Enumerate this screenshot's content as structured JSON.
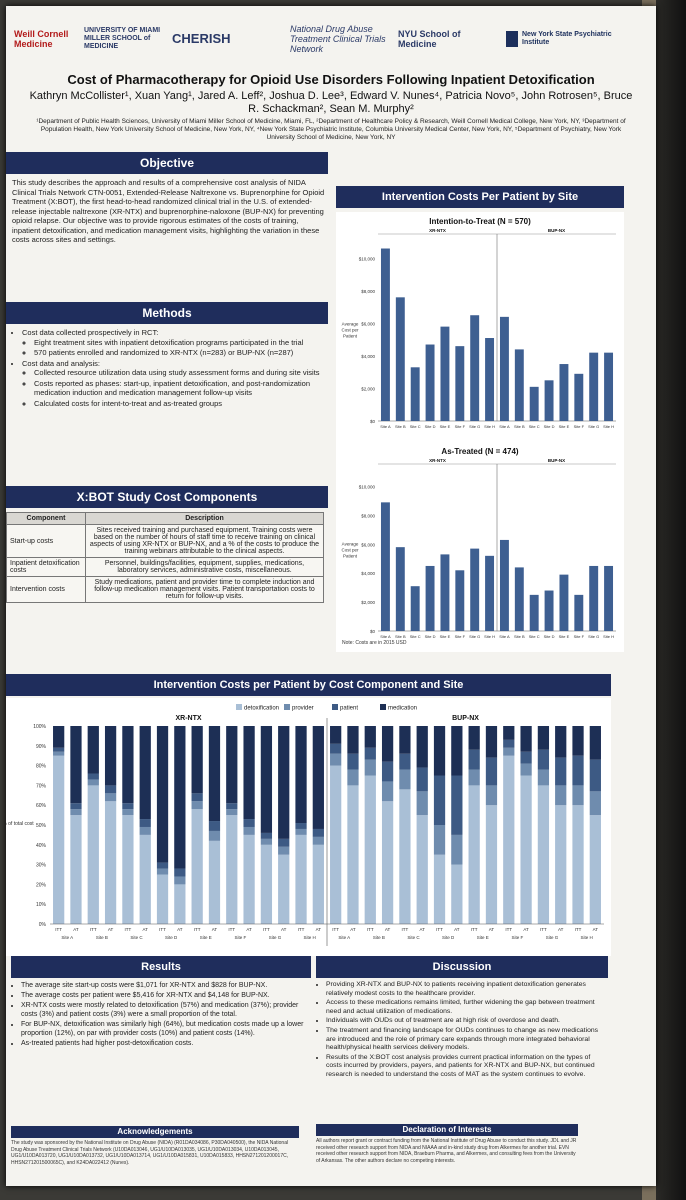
{
  "logos": [
    "Weill Cornell Medicine",
    "UNIVERSITY OF MIAMI MILLER SCHOOL of MEDICINE",
    "CHERISH",
    "National Drug Abuse Treatment Clinical Trials Network",
    "NYU School of Medicine",
    "New York State Psychiatric Institute"
  ],
  "title": "Cost of Pharmacotherapy for Opioid Use Disorders Following Inpatient Detoxification",
  "authors": "Kathryn McCollister¹, Xuan Yang¹, Jared A. Leff², Joshua D. Lee³, Edward V. Nunes⁴, Patricia Novo⁵, John Rotrosen⁵, Bruce R. Schackman², Sean M. Murphy²",
  "affiliations": "¹Department of Public Health Sciences, University of Miami Miller School of Medicine, Miami, FL, ²Department of Healthcare Policy & Research, Weill Cornell Medical College, New York, NY, ³Department of Population Health, New York University School of Medicine, New York, NY, ⁴New York State Psychiatric Institute, Columbia University Medical Center, New York, NY, ⁵Department of Psychiatry, New York University School of Medicine, New York, NY",
  "objective": {
    "heading": "Objective",
    "text": "This study describes the approach and results of a comprehensive cost analysis of NIDA Clinical Trials Network CTN-0051, Extended-Release Naltrexone vs. Buprenorphine for Opioid Treatment (X:BOT), the first head-to-head randomized clinical trial in the U.S. of extended-release injectable naltrexone (XR-NTX) and buprenorphine-naloxone (BUP-NX) for preventing opioid relapse. Our objective was to provide rigorous estimates of the costs of training, inpatient detoxification, and medication management visits, highlighting the variation in these costs across sites and settings."
  },
  "methods": {
    "heading": "Methods",
    "items": [
      {
        "text": "Cost data collected prospectively in RCT:",
        "sub": [
          "Eight treatment sites with inpatient detoxification programs participated in the trial",
          "570 patients enrolled and randomized to XR-NTX (n=283) or BUP-NX (n=287)"
        ]
      },
      {
        "text": "Cost data and analysis:",
        "sub": [
          "Collected resource utilization data using study assessment forms and during site visits",
          "Costs reported as phases: start-up, inpatient detoxification, and post-randomization medication induction and medication management follow-up visits",
          "Calculated costs for intent-to-treat and as-treated groups"
        ]
      }
    ]
  },
  "components": {
    "heading": "X:BOT Study Cost Components",
    "col1": "Component",
    "col2": "Description",
    "rows": [
      {
        "component": "Start-up costs",
        "description": "Sites received training and purchased equipment. Training costs were based on the number of hours of staff time to receive training on clinical aspects of using XR-NTX or BUP-NX, and a % of the costs to produce the training webinars attributable to the clinical aspects."
      },
      {
        "component": "Inpatient detoxification costs",
        "description": "Personnel, buildings/facilities, equipment, supplies, medications, laboratory services, administrative costs, miscellaneous."
      },
      {
        "component": "Intervention costs",
        "description": "Study medications, patient and provider time to complete induction and follow-up medication management visits. Patient transportation costs to return for follow-up visits."
      }
    ]
  },
  "site_costs": {
    "heading": "Intervention Costs Per Patient by Site",
    "note": "Note: Costs are in 2015 USD",
    "ylabel": "Average Cost per Patient"
  },
  "component_chart": {
    "heading": "Intervention Costs per Patient by Cost Component and Site",
    "ylabel": "% of total cost"
  },
  "results": {
    "heading": "Results",
    "items": [
      "The average site start-up costs were $1,071 for XR-NTX and $828 for BUP-NX.",
      "The average costs per patient were $5,416 for XR-NTX and $4,148 for BUP-NX.",
      "XR-NTX costs were mostly related to detoxification (57%) and medication (37%); provider costs (3%) and patient costs (3%) were a small proportion of the total.",
      "For BUP-NX, detoxification was similarly high (64%), but medication costs made up a lower proportion (12%), on par with provider costs (10%) and patient costs (14%).",
      "As-treated patients had higher post-detoxification costs."
    ]
  },
  "discussion": {
    "heading": "Discussion",
    "items": [
      "Providing XR-NTX and BUP-NX to patients receiving inpatient detoxification generates relatively modest costs to the healthcare provider.",
      "Access to these medications remains limited, further widening the gap between treatment need and actual utilization of medications.",
      "Individuals with OUDs out of treatment are at high risk of overdose and death.",
      "The treatment and financing landscape for OUDs continues to change as new medications are introduced and the role of primary care expands through more integrated behavioral health/physical health services delivery models.",
      "Results of the X:BOT cost analysis provides current practical information on the types of costs incurred by providers, payers, and patients for XR-NTX and BUP-NX, but continued research is needed to understand the costs of MAT as the system continues to evolve."
    ]
  },
  "acknowledgements": {
    "heading": "Acknowledgements",
    "text": "The study was sponsored by the National Institute on Drug Abuse (NIDA) (R01DA034086, P30DA040500), the NIDA National Drug Abuse Treatment Clinical Trials Network (U10DA013046, UG1/U10DA013035, UG1/U10DA013034, U10DA013045, UG1/U10DA013720, UG1/U10DA013732, UG1/U10DA013714, UG1/U10DA015831, U10DA015833, HHSN271201200017C, HHSN271201500065C), and K24DA022412 (Nunes)."
  },
  "declaration": {
    "heading": "Declaration of Interests",
    "text": "All authors report grant or contract funding from the National Institute of Drug Abuse to conduct this study. JDL and JR received other research support from NIDA and NIAAA and in-kind study drug from Alkermes for another trial. EVN received other research support from NIDA, Braeburn Pharma, and Alkermes, and consulting fees from the University of Arkansas. The other authors declare no competing interests."
  },
  "chart_data": [
    {
      "type": "bar",
      "title": "Intention-to-Treat (N = 570)",
      "ylabel": "Average Cost per Patient",
      "groups": [
        "XR-NTX",
        "BUP-NX"
      ],
      "categories": [
        "Site A",
        "Site B",
        "Site C",
        "Site D",
        "Site E",
        "Site F",
        "Site G",
        "Site H",
        "Site A",
        "Site B",
        "Site C",
        "Site D",
        "Site E",
        "Site F",
        "Site G",
        "Site H"
      ],
      "values": [
        10600,
        7600,
        3300,
        4700,
        5800,
        4600,
        6500,
        5100,
        6400,
        4400,
        2100,
        2500,
        3500,
        2900,
        4200,
        4200
      ],
      "ylim": [
        0,
        11000
      ],
      "yticks": [
        "$0",
        "$2,000",
        "$4,000",
        "$6,000",
        "$8,000",
        "$10,000"
      ]
    },
    {
      "type": "bar",
      "title": "As-Treated (N = 474)",
      "ylabel": "Average Cost per Patient",
      "groups": [
        "XR-NTX",
        "BUP-NX"
      ],
      "categories": [
        "Site A",
        "Site B",
        "Site C",
        "Site D",
        "Site E",
        "Site F",
        "Site G",
        "Site H",
        "Site A",
        "Site B",
        "Site C",
        "Site D",
        "Site E",
        "Site F",
        "Site G",
        "Site H"
      ],
      "values": [
        8900,
        5800,
        3100,
        4500,
        5300,
        4200,
        5700,
        5200,
        6300,
        4400,
        2500,
        2800,
        3900,
        2500,
        4500,
        4500
      ],
      "ylim": [
        0,
        11000
      ],
      "yticks": [
        "$0",
        "$2,000",
        "$4,000",
        "$6,000",
        "$8,000",
        "$10,000"
      ]
    },
    {
      "type": "bar",
      "stacked": true,
      "title": "Intervention Costs per Patient by Cost Component and Site",
      "legend": [
        "detoxification",
        "provider",
        "patient",
        "medication"
      ],
      "colors": [
        "#a9bfd6",
        "#6f8cae",
        "#3d5a84",
        "#1d2f55"
      ],
      "yticks": [
        "0%",
        "10%",
        "20%",
        "30%",
        "40%",
        "50%",
        "60%",
        "70%",
        "80%",
        "90%",
        "100%"
      ],
      "groups": [
        "XR-NTX",
        "BUP-NX"
      ],
      "site_labels": [
        "Site A",
        "Site B",
        "Site C",
        "Site D",
        "Site E",
        "Site F",
        "Site G",
        "Site H"
      ],
      "bar_labels": [
        "ITT",
        "AT"
      ],
      "series": [
        {
          "name": "detoxification",
          "values": [
            85,
            55,
            70,
            62,
            55,
            45,
            25,
            20,
            58,
            42,
            55,
            45,
            40,
            35,
            45,
            40,
            80,
            70,
            75,
            62,
            68,
            55,
            35,
            30,
            70,
            60,
            85,
            75,
            70,
            60,
            60,
            55
          ]
        },
        {
          "name": "provider",
          "values": [
            2,
            3,
            3,
            4,
            3,
            4,
            3,
            4,
            4,
            5,
            3,
            4,
            3,
            4,
            3,
            4,
            6,
            8,
            8,
            10,
            10,
            12,
            15,
            15,
            8,
            10,
            4,
            6,
            8,
            10,
            10,
            12
          ]
        },
        {
          "name": "patient",
          "values": [
            2,
            3,
            3,
            4,
            3,
            4,
            3,
            4,
            4,
            5,
            3,
            4,
            3,
            4,
            3,
            4,
            5,
            8,
            6,
            10,
            8,
            12,
            25,
            30,
            10,
            14,
            4,
            6,
            10,
            14,
            15,
            16
          ]
        },
        {
          "name": "medication",
          "values": [
            11,
            39,
            24,
            30,
            39,
            47,
            69,
            72,
            34,
            48,
            39,
            47,
            54,
            57,
            49,
            52,
            9,
            14,
            11,
            18,
            14,
            21,
            25,
            25,
            12,
            16,
            7,
            13,
            12,
            16,
            15,
            17
          ]
        }
      ]
    }
  ]
}
